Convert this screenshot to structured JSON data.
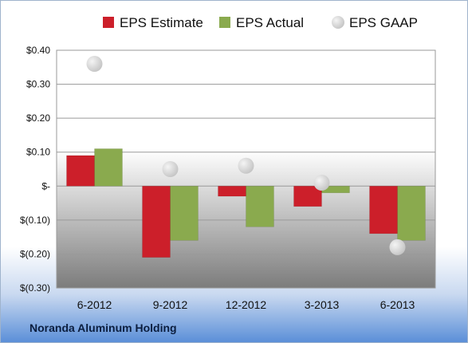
{
  "footer": {
    "company": "Noranda Aluminum Holding"
  },
  "colors": {
    "estimate": "#cc1f2a",
    "actual": "#8aaa4e",
    "gaap": "#c4c4c4",
    "plot_top": "#ffffff",
    "plot_bottom": "#7c7c7c"
  },
  "chart_data": {
    "type": "bar",
    "title": "",
    "xlabel": "",
    "ylabel": "",
    "categories": [
      "6-2012",
      "9-2012",
      "12-2012",
      "3-2013",
      "6-2013"
    ],
    "series": [
      {
        "name": "EPS Estimate",
        "kind": "bar",
        "values": [
          0.09,
          -0.21,
          -0.03,
          -0.06,
          -0.14
        ]
      },
      {
        "name": "EPS Actual",
        "kind": "bar",
        "values": [
          0.11,
          -0.16,
          -0.12,
          -0.02,
          -0.16
        ]
      },
      {
        "name": "EPS GAAP",
        "kind": "point",
        "values": [
          0.36,
          0.05,
          0.06,
          0.01,
          -0.18
        ]
      }
    ],
    "ylim": [
      -0.3,
      0.4
    ],
    "yticks": [
      0.4,
      0.3,
      0.2,
      0.1,
      0.0,
      -0.1,
      -0.2,
      -0.3
    ],
    "ytick_labels": [
      "$0.40",
      "$0.30",
      "$0.20",
      "$0.10",
      "$-",
      "$(0.10)",
      "$(0.20)",
      "$(0.30)"
    ],
    "grid": true,
    "legend_position": "top"
  }
}
